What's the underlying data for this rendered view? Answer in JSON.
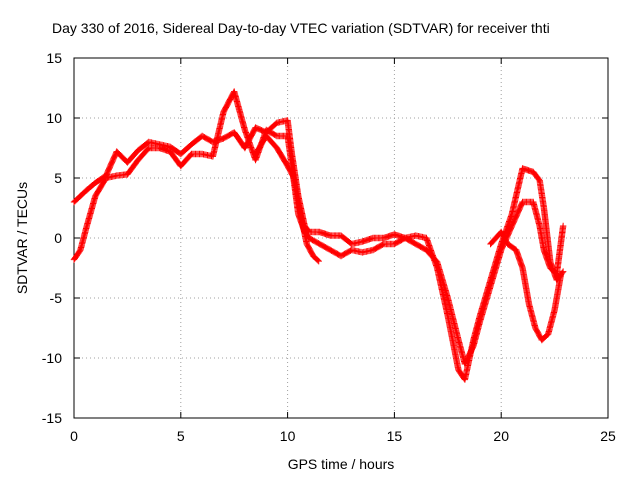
{
  "chart_data": {
    "type": "scatter",
    "title": "Day 330 of 2016, Sidereal Day-to-day VTEC variation (SDTVAR) for receiver thti",
    "xlabel": "GPS time / hours",
    "ylabel": "SDTVAR / TECUs",
    "xlim": [
      0,
      25
    ],
    "ylim": [
      -15,
      15
    ],
    "xticks": [
      "0",
      "5",
      "10",
      "15",
      "20",
      "25"
    ],
    "yticks": [
      "-15",
      "-10",
      "-5",
      "0",
      "5",
      "10",
      "15"
    ],
    "xtick_values": [
      0,
      5,
      10,
      15,
      20,
      25
    ],
    "ytick_values": [
      -15,
      -10,
      -5,
      0,
      5,
      10,
      15
    ],
    "grid": true,
    "marker": "plus",
    "color": "#ff0000",
    "series": [
      {
        "x": [
          0.0,
          0.3,
          0.6,
          1.0,
          1.5,
          2.0,
          2.5,
          3.0,
          3.5,
          4.0,
          4.5,
          5.0,
          5.5,
          6.0,
          6.5,
          7.0,
          7.5,
          8.0,
          8.5,
          9.0,
          9.5,
          10.0,
          10.2,
          10.5,
          10.8,
          11.0,
          11.5,
          12.0,
          12.5,
          13.0,
          13.5,
          14.0,
          14.5,
          15.0,
          15.5,
          16.0,
          16.5,
          17.0,
          17.5,
          18.0,
          18.3,
          18.7,
          19.0,
          19.5,
          20.0,
          20.5,
          21.0,
          21.5,
          21.8,
          22.0,
          22.3,
          22.6,
          22.9
        ],
        "y": [
          3.0,
          3.5,
          4.0,
          4.6,
          5.2,
          7.2,
          6.3,
          7.3,
          8.0,
          7.8,
          7.6,
          7.0,
          7.8,
          8.5,
          8.0,
          8.3,
          8.8,
          7.5,
          9.2,
          8.8,
          9.6,
          9.8,
          7.0,
          3.5,
          1.0,
          0.5,
          0.5,
          0.2,
          0.2,
          -0.5,
          -0.3,
          0.0,
          0.0,
          0.3,
          0.0,
          0.2,
          0.0,
          -2.5,
          -6.5,
          -11.0,
          -11.8,
          -8.5,
          -6.5,
          -3.5,
          -0.5,
          2.0,
          5.8,
          5.5,
          4.8,
          2.5,
          -2.0,
          -3.5,
          -2.8
        ]
      },
      {
        "x": [
          0.0,
          0.3,
          0.6,
          1.0,
          1.5,
          2.0,
          2.5,
          3.0,
          3.5,
          4.0,
          4.5,
          5.0,
          5.5,
          6.0,
          6.5,
          7.0,
          7.5,
          8.0,
          8.5,
          9.0,
          9.5,
          10.0,
          10.2,
          10.5,
          10.8,
          11.0,
          11.5,
          12.0,
          12.5,
          13.0,
          13.5,
          14.0,
          14.5,
          15.0,
          15.5,
          16.0,
          16.5,
          17.0,
          17.5,
          18.0,
          18.3,
          18.7,
          19.0,
          19.5,
          20.0,
          20.5,
          21.0,
          21.5,
          21.8,
          22.0,
          22.3,
          22.6,
          22.9
        ],
        "y": [
          -1.8,
          -1.0,
          1.0,
          3.5,
          5.0,
          5.2,
          5.3,
          6.5,
          7.5,
          7.5,
          7.2,
          6.0,
          7.0,
          7.0,
          6.8,
          10.5,
          12.2,
          9.0,
          6.5,
          9.0,
          8.5,
          8.5,
          6.0,
          2.0,
          0.5,
          0.0,
          -0.5,
          -1.0,
          -1.5,
          -1.0,
          -1.2,
          -1.0,
          -0.5,
          -0.5,
          0.0,
          -0.5,
          -1.0,
          -2.0,
          -5.0,
          -8.5,
          -10.5,
          -9.0,
          -7.0,
          -4.0,
          -1.0,
          1.0,
          3.0,
          3.0,
          1.0,
          -1.0,
          -2.5,
          -3.0,
          1.0
        ]
      },
      {
        "x": [
          8.5,
          9.0,
          9.5,
          10.0,
          10.3,
          10.6,
          10.9,
          11.2,
          11.5,
          19.5,
          20.0,
          20.3,
          20.7,
          21.0,
          21.3,
          21.6,
          21.9,
          22.2,
          22.5,
          22.8
        ],
        "y": [
          7.0,
          8.5,
          7.5,
          6.0,
          5.0,
          2.0,
          -0.5,
          -1.5,
          -2.0,
          -0.5,
          0.5,
          -0.5,
          -1.0,
          -2.5,
          -5.5,
          -7.5,
          -8.5,
          -8.0,
          -6.0,
          -3.0
        ]
      }
    ]
  }
}
